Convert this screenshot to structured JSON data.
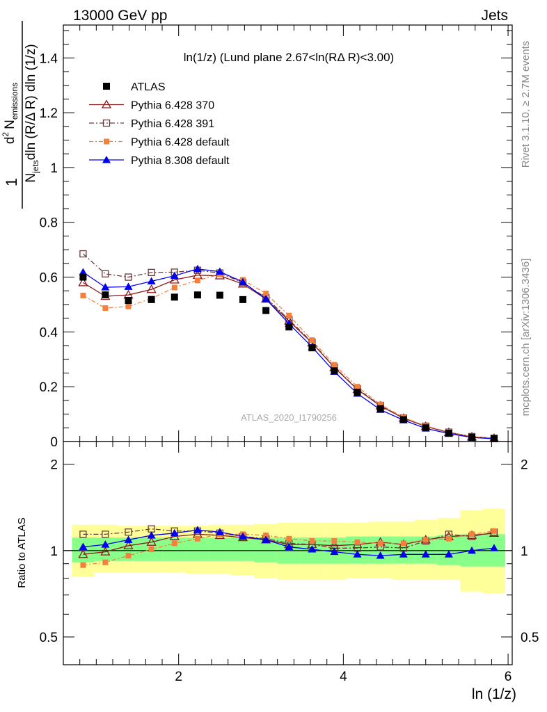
{
  "header": {
    "left": "13000 GeV pp",
    "right": "Jets"
  },
  "side_labels": {
    "rivet": "Rivet 3.1.10, ≥ 2.7M events",
    "mcplots": "mcplots.cern.ch [arXiv:1306.3436]"
  },
  "chart_data": [
    {
      "type": "scatter",
      "title": "ln(1/z) (Lund plane 2.67<ln(RΔ R)<3.00)",
      "watermark": "ATLAS_2020_I1790256",
      "ylabel": {
        "frac_one": "1",
        "n_jets": "N",
        "n_jets_sub": "jets",
        "dln_part": "dln (R/Δ R) dln (1/z)",
        "d2": "d",
        "d2_sup": "2",
        "n_em": "N",
        "n_em_sub": "emissions"
      },
      "xlim": [
        0.6,
        6.05
      ],
      "ylim": [
        0,
        1.52
      ],
      "yticks": [
        "0",
        "0.2",
        "0.4",
        "0.6",
        "0.8",
        "1",
        "1.2",
        "1.4"
      ],
      "x": [
        0.84,
        1.11,
        1.39,
        1.67,
        1.95,
        2.23,
        2.5,
        2.78,
        3.06,
        3.34,
        3.62,
        3.89,
        4.17,
        4.45,
        4.73,
        5.0,
        5.28,
        5.56,
        5.83
      ],
      "series": [
        {
          "name": "ATLAS",
          "color": "#000000",
          "marker": "square-filled",
          "values": [
            0.6,
            0.535,
            0.515,
            0.518,
            0.527,
            0.535,
            0.534,
            0.518,
            0.478,
            0.418,
            0.342,
            0.258,
            0.18,
            0.12,
            0.08,
            0.05,
            0.03,
            0.015,
            0.01
          ]
        },
        {
          "name": "Pythia 6.428 370",
          "color": "#8b1a1a",
          "marker": "triangle-open",
          "dash": "",
          "values": [
            0.58,
            0.53,
            0.535,
            0.555,
            0.59,
            0.607,
            0.605,
            0.575,
            0.52,
            0.44,
            0.36,
            0.27,
            0.19,
            0.13,
            0.085,
            0.055,
            0.033,
            0.017,
            0.012
          ]
        },
        {
          "name": "Pythia 6.428 391",
          "color": "#6b3a3a",
          "marker": "square-open",
          "dash": "7,3,2,3",
          "values": [
            0.685,
            0.612,
            0.6,
            0.617,
            0.618,
            0.625,
            0.615,
            0.58,
            0.525,
            0.445,
            0.362,
            0.272,
            0.192,
            0.132,
            0.086,
            0.056,
            0.034,
            0.018,
            0.012
          ]
        },
        {
          "name": "Pythia 6.428 default",
          "color": "#f5803e",
          "marker": "square-filled-small",
          "dash": "6,3,2,3",
          "values": [
            0.533,
            0.487,
            0.493,
            0.522,
            0.562,
            0.588,
            0.61,
            0.59,
            0.54,
            0.46,
            0.37,
            0.28,
            0.2,
            0.135,
            0.088,
            0.057,
            0.035,
            0.018,
            0.012
          ]
        },
        {
          "name": "Pythia 8.308 default",
          "color": "#0000ee",
          "marker": "triangle-filled",
          "dash": "",
          "values": [
            0.618,
            0.563,
            0.565,
            0.585,
            0.605,
            0.63,
            0.62,
            0.582,
            0.52,
            0.43,
            0.345,
            0.255,
            0.175,
            0.116,
            0.078,
            0.048,
            0.029,
            0.015,
            0.01
          ]
        }
      ]
    },
    {
      "type": "scatter",
      "ylabel": "Ratio to ATLAS",
      "xlabel": "ln (1/z)",
      "ylog": true,
      "ylim": [
        0.4,
        2.4
      ],
      "yticks": [
        "0.5",
        "1",
        "2"
      ],
      "xticks": [
        "2",
        "4",
        "6"
      ],
      "x": [
        0.84,
        1.11,
        1.39,
        1.67,
        1.95,
        2.23,
        2.5,
        2.78,
        3.06,
        3.34,
        3.62,
        3.89,
        4.17,
        4.45,
        4.73,
        5.0,
        5.28,
        5.56,
        5.83
      ],
      "bands": {
        "green": {
          "color": "#88ff88",
          "lo": [
            0.91,
            0.92,
            0.92,
            0.92,
            0.92,
            0.92,
            0.92,
            0.92,
            0.91,
            0.9,
            0.9,
            0.9,
            0.9,
            0.9,
            0.9,
            0.9,
            0.89,
            0.88,
            0.88
          ],
          "hi": [
            1.11,
            1.11,
            1.11,
            1.11,
            1.11,
            1.11,
            1.11,
            1.11,
            1.11,
            1.11,
            1.11,
            1.11,
            1.12,
            1.12,
            1.12,
            1.12,
            1.13,
            1.14,
            1.14
          ]
        },
        "yellow": {
          "color": "#ffff99",
          "lo": [
            0.81,
            0.84,
            0.84,
            0.84,
            0.84,
            0.83,
            0.83,
            0.82,
            0.8,
            0.79,
            0.79,
            0.79,
            0.8,
            0.8,
            0.79,
            0.79,
            0.79,
            0.72,
            0.71
          ],
          "hi": [
            1.23,
            1.23,
            1.22,
            1.22,
            1.22,
            1.22,
            1.23,
            1.23,
            1.24,
            1.25,
            1.25,
            1.25,
            1.25,
            1.26,
            1.26,
            1.28,
            1.3,
            1.38,
            1.4
          ]
        }
      },
      "series": [
        {
          "name": "Pythia 6.428 370",
          "values": [
            0.97,
            0.99,
            1.04,
            1.07,
            1.12,
            1.14,
            1.13,
            1.11,
            1.09,
            1.05,
            1.05,
            1.04,
            1.05,
            1.07,
            1.05,
            1.09,
            1.12,
            1.13,
            1.15
          ]
        },
        {
          "name": "Pythia 6.428 391",
          "values": [
            1.14,
            1.14,
            1.16,
            1.19,
            1.17,
            1.17,
            1.15,
            1.12,
            1.1,
            1.06,
            1.05,
            1.02,
            1.02,
            1.03,
            1.02,
            1.08,
            1.14,
            1.12,
            1.16
          ]
        },
        {
          "name": "Pythia 6.428 default",
          "values": [
            0.89,
            0.91,
            0.96,
            1.01,
            1.06,
            1.1,
            1.14,
            1.14,
            1.13,
            1.1,
            1.08,
            1.08,
            1.07,
            1.06,
            1.06,
            1.09,
            1.1,
            1.14,
            1.17
          ]
        },
        {
          "name": "Pythia 8.308 default",
          "values": [
            1.03,
            1.05,
            1.09,
            1.13,
            1.15,
            1.18,
            1.16,
            1.12,
            1.09,
            1.03,
            1.01,
            0.99,
            0.97,
            0.96,
            0.97,
            0.97,
            0.97,
            1.0,
            1.02
          ]
        }
      ]
    }
  ]
}
